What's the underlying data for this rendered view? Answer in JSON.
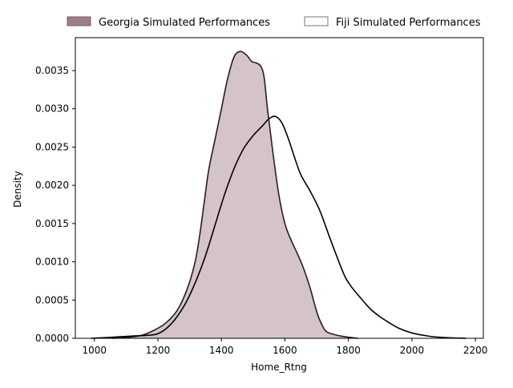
{
  "chart_data": {
    "type": "area",
    "title": "",
    "xlabel": "Home_Rtng",
    "ylabel": "Density",
    "xlim": [
      940,
      2225
    ],
    "ylim": [
      0,
      0.00393
    ],
    "x_ticks": [
      1000,
      1200,
      1400,
      1600,
      1800,
      2000,
      2200
    ],
    "x_tick_labels": [
      "1000",
      "1200",
      "1400",
      "1600",
      "1800",
      "2000",
      "2200"
    ],
    "y_ticks": [
      0,
      0.0005,
      0.001,
      0.0015,
      0.002,
      0.0025,
      0.003,
      0.0035
    ],
    "y_tick_labels": [
      "0.0000",
      "0.0005",
      "0.0010",
      "0.0015",
      "0.0020",
      "0.0025",
      "0.0030",
      "0.0035"
    ],
    "grid": false,
    "legend_position": "top, outside plot, horizontal",
    "series": [
      {
        "name": "Georgia Simulated Performances",
        "fill": "#d4c4c7",
        "legend_fill": "#9c8087",
        "stroke": "#2a1c1f",
        "filled": true,
        "points": [
          [
            1055,
            0.0
          ],
          [
            1100,
            1e-05
          ],
          [
            1150,
            4e-05
          ],
          [
            1190,
            0.00011
          ],
          [
            1225,
            0.0002
          ],
          [
            1260,
            0.00036
          ],
          [
            1290,
            0.00062
          ],
          [
            1315,
            0.00096
          ],
          [
            1330,
            0.0013
          ],
          [
            1345,
            0.00175
          ],
          [
            1360,
            0.0022
          ],
          [
            1380,
            0.0026
          ],
          [
            1400,
            0.003
          ],
          [
            1420,
            0.0034
          ],
          [
            1440,
            0.00368
          ],
          [
            1460,
            0.00375
          ],
          [
            1480,
            0.0037
          ],
          [
            1495,
            0.00362
          ],
          [
            1510,
            0.0036
          ],
          [
            1525,
            0.00355
          ],
          [
            1535,
            0.0034
          ],
          [
            1545,
            0.003
          ],
          [
            1560,
            0.0025
          ],
          [
            1580,
            0.0019
          ],
          [
            1600,
            0.0015
          ],
          [
            1620,
            0.00128
          ],
          [
            1640,
            0.0011
          ],
          [
            1660,
            0.0009
          ],
          [
            1680,
            0.00065
          ],
          [
            1700,
            0.00035
          ],
          [
            1715,
            0.00019
          ],
          [
            1730,
            9e-05
          ],
          [
            1755,
            5e-05
          ],
          [
            1790,
            2e-05
          ],
          [
            1830,
            0.0
          ]
        ]
      },
      {
        "name": "Fiji Simulated Performances",
        "fill": "#ffffff",
        "legend_fill": "#ffffff",
        "stroke": "#000000",
        "filled": false,
        "points": [
          [
            990,
            0.0
          ],
          [
            1040,
            1e-05
          ],
          [
            1080,
            2e-05
          ],
          [
            1120,
            3e-05
          ],
          [
            1170,
            4e-05
          ],
          [
            1200,
            6e-05
          ],
          [
            1230,
            0.00014
          ],
          [
            1260,
            0.00028
          ],
          [
            1290,
            0.00048
          ],
          [
            1320,
            0.00075
          ],
          [
            1350,
            0.00108
          ],
          [
            1380,
            0.00148
          ],
          [
            1410,
            0.00188
          ],
          [
            1440,
            0.00222
          ],
          [
            1470,
            0.00248
          ],
          [
            1500,
            0.00265
          ],
          [
            1530,
            0.00278
          ],
          [
            1550,
            0.00287
          ],
          [
            1570,
            0.0029
          ],
          [
            1590,
            0.00282
          ],
          [
            1610,
            0.00262
          ],
          [
            1630,
            0.00237
          ],
          [
            1650,
            0.00214
          ],
          [
            1680,
            0.00192
          ],
          [
            1710,
            0.00167
          ],
          [
            1740,
            0.00133
          ],
          [
            1770,
            0.001
          ],
          [
            1790,
            0.0008
          ],
          [
            1810,
            0.00067
          ],
          [
            1840,
            0.00052
          ],
          [
            1870,
            0.00038
          ],
          [
            1900,
            0.00028
          ],
          [
            1930,
            0.0002
          ],
          [
            1960,
            0.00013
          ],
          [
            2000,
            7e-05
          ],
          [
            2050,
            3e-05
          ],
          [
            2100,
            1e-05
          ],
          [
            2170,
            0.0
          ]
        ]
      }
    ]
  }
}
